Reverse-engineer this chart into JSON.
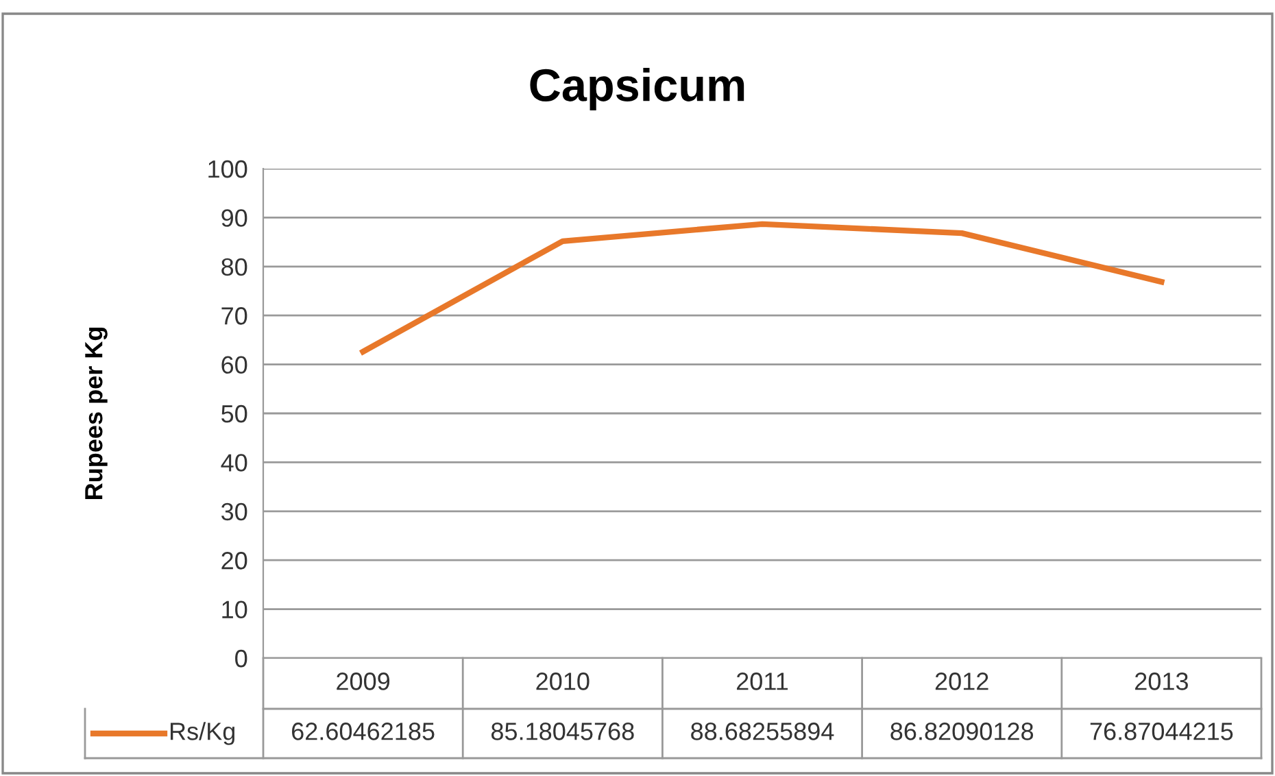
{
  "chart_data": {
    "type": "line",
    "title": "Capsicum",
    "ylabel": "Rupees per Kg",
    "categories": [
      "2009",
      "2010",
      "2011",
      "2012",
      "2013"
    ],
    "series": [
      {
        "name": "Rs/Kg",
        "color": "#e8782a",
        "values": [
          62.60462185,
          85.18045768,
          88.68255894,
          86.82090128,
          76.87044215
        ]
      }
    ],
    "ylim": [
      0,
      100
    ],
    "yticks": [
      0,
      10,
      20,
      30,
      40,
      50,
      60,
      70,
      80,
      90,
      100
    ],
    "grid": "y",
    "legend": "bottom",
    "data_labels": true,
    "marker": "none",
    "line_style": "solid"
  }
}
